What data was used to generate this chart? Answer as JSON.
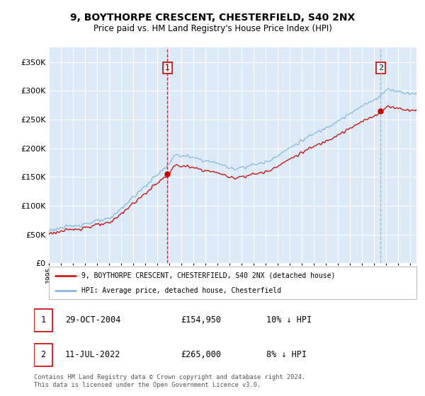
{
  "title": "9, BOYTHORPE CRESCENT, CHESTERFIELD, S40 2NX",
  "subtitle": "Price paid vs. HM Land Registry's House Price Index (HPI)",
  "background_color": "#dce9f7",
  "hpi_color": "#7ab3d9",
  "price_color": "#cc0000",
  "vline1_color": "#cc0000",
  "vline2_color": "#7ab3d9",
  "annotation_box_color": "#cc0000",
  "sale1": {
    "date_num": 2004.83,
    "price": 154950,
    "label": "1"
  },
  "sale2": {
    "date_num": 2022.53,
    "price": 265000,
    "label": "2"
  },
  "ylim": [
    0,
    375000
  ],
  "yticks": [
    0,
    50000,
    100000,
    150000,
    200000,
    250000,
    300000,
    350000
  ],
  "legend1_label": "9, BOYTHORPE CRESCENT, CHESTERFIELD, S40 2NX (detached house)",
  "legend2_label": "HPI: Average price, detached house, Chesterfield",
  "table_row1": [
    "1",
    "29-OCT-2004",
    "£154,950",
    "10% ↓ HPI"
  ],
  "table_row2": [
    "2",
    "11-JUL-2022",
    "£265,000",
    "8% ↓ HPI"
  ],
  "footer": "Contains HM Land Registry data © Crown copyright and database right 2024.\nThis data is licensed under the Open Government Licence v3.0.",
  "xmin": 1995.0,
  "xmax": 2025.5
}
